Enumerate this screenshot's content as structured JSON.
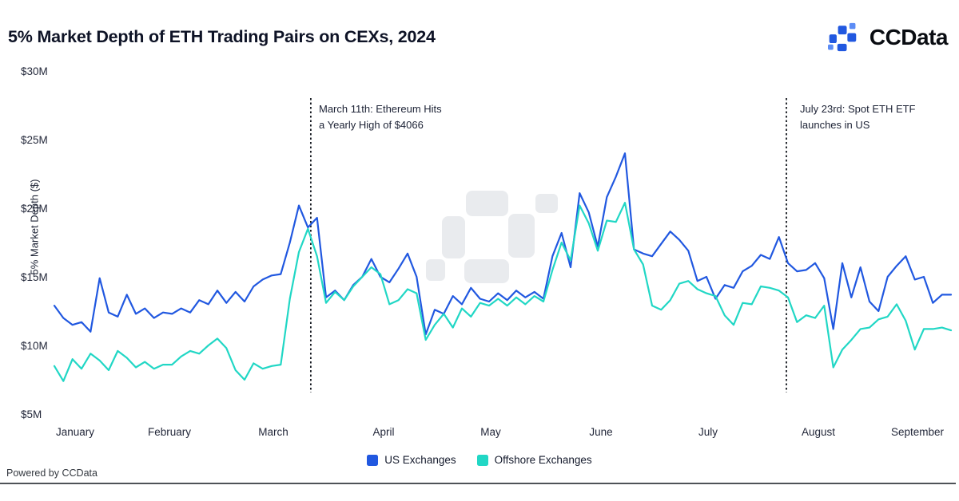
{
  "header": {
    "title": "5% Market Depth of ETH Trading Pairs on CEXs, 2024",
    "brand_name": "CCData"
  },
  "footer": {
    "powered_by": "Powered by CCData"
  },
  "legend": [
    {
      "label": "US Exchanges",
      "color": "#2158e0"
    },
    {
      "label": "Offshore Exchanges",
      "color": "#21d7c5"
    }
  ],
  "colors": {
    "us_line": "#2158e0",
    "offshore_line": "#21d7c5",
    "annotation_line": "#14181f",
    "watermark": "#e9ebee",
    "logo_blue": "#2158e0",
    "logo_blue_light": "#5c8cf5"
  },
  "chart_data": {
    "type": "line",
    "title": "5% Market Depth of ETH Trading Pairs on CEXs, 2024",
    "xlabel": "",
    "ylabel": "5% Market Depth ($)",
    "ylim": [
      5,
      30
    ],
    "grid": false,
    "legend_position": "bottom",
    "yticks": [
      {
        "value": 30,
        "label": "$30M"
      },
      {
        "value": 25,
        "label": "$25M"
      },
      {
        "value": 20,
        "label": "$20M"
      },
      {
        "value": 15,
        "label": "$15M"
      },
      {
        "value": 10,
        "label": "$10M"
      },
      {
        "value": 5,
        "label": "$5M"
      }
    ],
    "x_months": [
      "January",
      "February",
      "March",
      "April",
      "May",
      "June",
      "July",
      "August",
      "September"
    ],
    "annotations": [
      {
        "line1": "March 11th: Ethereum Hits",
        "line2": "a Yearly High of $4066",
        "x_fraction": 0.286
      },
      {
        "line1": "July 23rd: Spot ETH ETF",
        "line2": "launches in US",
        "x_fraction": 0.8164
      }
    ],
    "series": [
      {
        "name": "US Exchanges",
        "color": "#2158e0",
        "values": [
          12.9,
          12.0,
          11.5,
          11.7,
          11.0,
          14.9,
          12.4,
          12.1,
          13.7,
          12.3,
          12.7,
          12.0,
          12.4,
          12.3,
          12.7,
          12.4,
          13.3,
          13.0,
          14.0,
          13.1,
          13.9,
          13.2,
          14.3,
          14.8,
          15.1,
          15.2,
          17.5,
          20.2,
          18.6,
          19.3,
          13.5,
          14.0,
          13.3,
          14.4,
          15.0,
          16.3,
          15.0,
          14.6,
          15.6,
          16.7,
          15.0,
          10.8,
          12.6,
          12.3,
          13.6,
          13.0,
          14.2,
          13.4,
          13.2,
          13.8,
          13.3,
          14.0,
          13.5,
          13.9,
          13.4,
          16.5,
          18.2,
          15.7,
          21.1,
          19.7,
          17.2,
          20.8,
          22.3,
          24.0,
          17.0,
          16.7,
          16.5,
          17.4,
          18.3,
          17.7,
          16.9,
          14.7,
          15.0,
          13.4,
          14.4,
          14.2,
          15.4,
          15.8,
          16.6,
          16.3,
          17.9,
          16.0,
          15.4,
          15.5,
          16.0,
          14.9,
          11.2,
          16.0,
          13.5,
          15.7,
          13.2,
          12.5,
          15.0,
          15.8,
          16.5,
          14.8,
          15.0,
          13.1,
          13.7,
          13.7
        ]
      },
      {
        "name": "Offshore Exchanges",
        "color": "#21d7c5",
        "values": [
          8.5,
          7.4,
          9.0,
          8.3,
          9.4,
          8.9,
          8.2,
          9.6,
          9.1,
          8.4,
          8.8,
          8.3,
          8.6,
          8.6,
          9.2,
          9.6,
          9.4,
          10.0,
          10.5,
          9.8,
          8.2,
          7.5,
          8.7,
          8.3,
          8.5,
          8.6,
          13.4,
          16.8,
          18.5,
          16.5,
          13.1,
          13.9,
          13.3,
          14.3,
          15.0,
          15.7,
          15.2,
          13.0,
          13.3,
          14.1,
          13.8,
          10.4,
          11.5,
          12.3,
          11.3,
          12.7,
          12.1,
          13.1,
          12.9,
          13.4,
          12.9,
          13.5,
          13.0,
          13.6,
          13.2,
          15.5,
          17.5,
          16.2,
          20.2,
          18.9,
          16.9,
          19.1,
          19.0,
          20.4,
          17.0,
          15.9,
          12.9,
          12.6,
          13.3,
          14.5,
          14.7,
          14.1,
          13.8,
          13.6,
          12.2,
          11.5,
          13.1,
          13.0,
          14.3,
          14.2,
          14.0,
          13.5,
          11.7,
          12.2,
          12.0,
          12.9,
          8.4,
          9.7,
          10.4,
          11.2,
          11.3,
          11.9,
          12.1,
          13.0,
          11.8,
          9.7,
          11.2,
          11.2,
          11.3,
          11.1
        ]
      }
    ]
  }
}
